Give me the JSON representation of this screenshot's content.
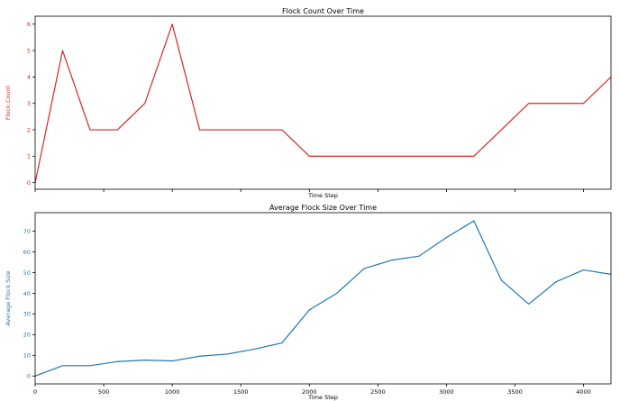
{
  "chart_data": [
    {
      "type": "line",
      "title": "Flock Count Over Time",
      "xlabel": "Time Step",
      "ylabel": "Flock Count",
      "xlim": [
        0,
        4200
      ],
      "ylim": [
        -0.25,
        6.3
      ],
      "x_ticks": [
        0,
        500,
        1000,
        1500,
        2000,
        2500,
        3000,
        3500,
        4000
      ],
      "x_tick_labels_visible": false,
      "y_ticks": [
        0,
        1,
        2,
        3,
        4,
        5,
        6
      ],
      "y_tick_labels": [
        "0",
        "1",
        "2",
        "3",
        "4",
        "5",
        "6"
      ],
      "grid": false,
      "color": "#d62728",
      "x": [
        0,
        200,
        400,
        600,
        800,
        1000,
        1200,
        1400,
        1600,
        1800,
        2000,
        2200,
        2400,
        2600,
        2800,
        3000,
        3200,
        3400,
        3600,
        3800,
        4000,
        4200
      ],
      "values": [
        0,
        5,
        2,
        2,
        3,
        6,
        2,
        2,
        2,
        2,
        1,
        1,
        1,
        1,
        1,
        1,
        1,
        2,
        3,
        3,
        3,
        4
      ]
    },
    {
      "type": "line",
      "title": "Average Flock Size Over Time",
      "xlabel": "Time Step",
      "ylabel": "Average Flock Size",
      "xlim": [
        0,
        4200
      ],
      "ylim": [
        -3.8,
        79
      ],
      "x_ticks": [
        0,
        500,
        1000,
        1500,
        2000,
        2500,
        3000,
        3500,
        4000
      ],
      "x_tick_labels": [
        "0",
        "500",
        "1000",
        "1500",
        "2000",
        "2500",
        "3000",
        "3500",
        "4000"
      ],
      "y_ticks": [
        0,
        10,
        20,
        30,
        40,
        50,
        60,
        70
      ],
      "y_tick_labels": [
        "0",
        "10",
        "20",
        "30",
        "40",
        "50",
        "60",
        "70"
      ],
      "grid": false,
      "color": "#1f77b4",
      "x": [
        0,
        200,
        400,
        600,
        800,
        1000,
        1200,
        1400,
        1600,
        1800,
        2000,
        2200,
        2400,
        2600,
        2800,
        3000,
        3200,
        3400,
        3600,
        3800,
        4000,
        4200
      ],
      "values": [
        0,
        5,
        5,
        7,
        7.7,
        7.3,
        9.6,
        10.6,
        13,
        16,
        32,
        40,
        52,
        56,
        58,
        67,
        75,
        46.4,
        34.8,
        45.6,
        51.3,
        49.2
      ]
    }
  ]
}
